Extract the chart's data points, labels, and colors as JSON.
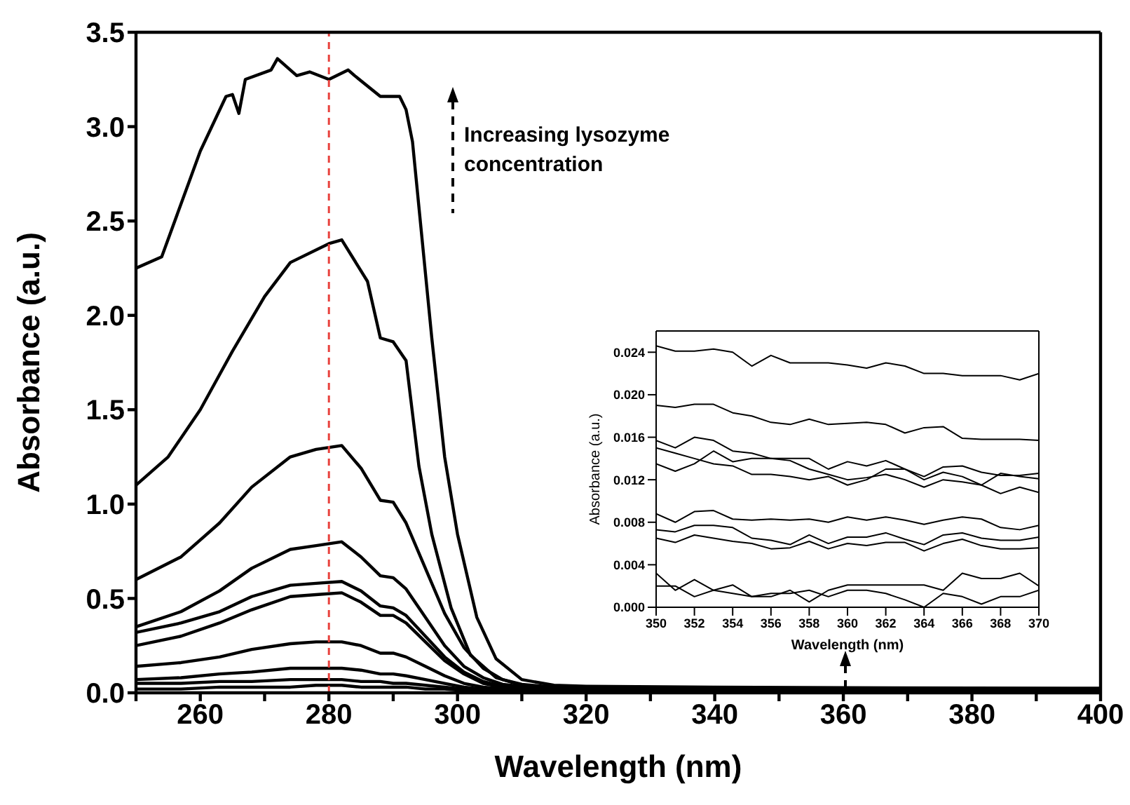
{
  "chart_data": [
    {
      "type": "line",
      "xlabel": "Wavelength (nm)",
      "ylabel": "Absorbance (a.u.)",
      "xlim": [
        250,
        400
      ],
      "ylim": [
        0,
        3.5
      ],
      "xticks": [
        {
          "value": 250,
          "label": null
        },
        260,
        {
          "value": 270,
          "label": null
        },
        280,
        {
          "value": 290,
          "label": null
        },
        300,
        {
          "value": 310,
          "label": null
        },
        320,
        {
          "value": 330,
          "label": null
        },
        340,
        {
          "value": 350,
          "label": null
        },
        360,
        {
          "value": 370,
          "label": null
        },
        380,
        {
          "value": 390,
          "label": null
        },
        400
      ],
      "yticks": [
        {
          "value": 0,
          "label": "0.0"
        },
        0.5,
        {
          "value": 1,
          "label": "1.0"
        },
        1.5,
        {
          "value": 2,
          "label": "2.0"
        },
        2.5,
        {
          "value": 3,
          "label": "3.0"
        },
        3.5
      ],
      "x": [
        250,
        257,
        263,
        268,
        274,
        278,
        282,
        285,
        288,
        290,
        292,
        295,
        298,
        301,
        304,
        307,
        310,
        315,
        320,
        340,
        360,
        380,
        400
      ],
      "series": [
        {
          "color": "#000000",
          "x": [
            250,
            254,
            260,
            264,
            265,
            266,
            267,
            271,
            272,
            275,
            277,
            280,
            283,
            284,
            288,
            291,
            292,
            293,
            296,
            298,
            300,
            303,
            306,
            310,
            315,
            320,
            340,
            360,
            380,
            400
          ],
          "values": [
            2.25,
            2.31,
            2.87,
            3.16,
            3.17,
            3.07,
            3.25,
            3.3,
            3.36,
            3.27,
            3.29,
            3.25,
            3.3,
            3.27,
            3.16,
            3.16,
            3.09,
            2.92,
            1.88,
            1.25,
            0.84,
            0.4,
            0.18,
            0.07,
            0.04,
            0.035,
            0.03,
            0.027,
            0.025,
            0.024
          ]
        },
        {
          "color": "#000000",
          "x": [
            250,
            255,
            260,
            265,
            270,
            274,
            280,
            282,
            286,
            288,
            290,
            292,
            294,
            296,
            299,
            302,
            306,
            310,
            315,
            320,
            340,
            360,
            380,
            400
          ],
          "values": [
            1.1,
            1.25,
            1.5,
            1.81,
            2.1,
            2.28,
            2.38,
            2.4,
            2.18,
            1.88,
            1.86,
            1.76,
            1.2,
            0.84,
            0.45,
            0.2,
            0.08,
            0.04,
            0.03,
            0.025,
            0.022,
            0.021,
            0.021,
            0.02
          ]
        },
        {
          "color": "#000000",
          "values": [
            0.6,
            0.72,
            0.9,
            1.09,
            1.25,
            1.29,
            1.31,
            1.19,
            1.02,
            1.01,
            0.9,
            0.66,
            0.42,
            0.24,
            0.13,
            0.07,
            0.045,
            0.03,
            0.022,
            0.02,
            0.02,
            0.019,
            0.018
          ]
        },
        {
          "color": "#000000",
          "values": [
            0.35,
            0.43,
            0.54,
            0.66,
            0.76,
            0.78,
            0.8,
            0.72,
            0.62,
            0.61,
            0.55,
            0.4,
            0.25,
            0.14,
            0.08,
            0.045,
            0.035,
            0.025,
            0.019,
            0.017,
            0.016,
            0.016,
            0.015
          ]
        },
        {
          "color": "#000000",
          "values": [
            0.32,
            0.37,
            0.43,
            0.51,
            0.57,
            0.58,
            0.59,
            0.54,
            0.46,
            0.45,
            0.41,
            0.3,
            0.19,
            0.11,
            0.06,
            0.035,
            0.028,
            0.02,
            0.016,
            0.014,
            0.014,
            0.013,
            0.013
          ]
        },
        {
          "color": "#000000",
          "values": [
            0.25,
            0.3,
            0.37,
            0.44,
            0.51,
            0.52,
            0.53,
            0.48,
            0.41,
            0.41,
            0.37,
            0.27,
            0.17,
            0.1,
            0.05,
            0.03,
            0.024,
            0.018,
            0.014,
            0.012,
            0.012,
            0.012,
            0.011
          ]
        },
        {
          "color": "#000000",
          "values": [
            0.14,
            0.16,
            0.19,
            0.23,
            0.26,
            0.27,
            0.27,
            0.25,
            0.21,
            0.21,
            0.19,
            0.14,
            0.09,
            0.05,
            0.03,
            0.022,
            0.018,
            0.014,
            0.011,
            0.009,
            0.009,
            0.008,
            0.008
          ]
        },
        {
          "color": "#000000",
          "values": [
            0.07,
            0.08,
            0.1,
            0.11,
            0.13,
            0.13,
            0.13,
            0.12,
            0.1,
            0.1,
            0.09,
            0.07,
            0.05,
            0.03,
            0.02,
            0.016,
            0.013,
            0.011,
            0.009,
            0.007,
            0.007,
            0.007,
            0.006
          ]
        },
        {
          "color": "#000000",
          "values": [
            0.05,
            0.05,
            0.06,
            0.06,
            0.07,
            0.07,
            0.07,
            0.06,
            0.06,
            0.05,
            0.05,
            0.04,
            0.03,
            0.02,
            0.015,
            0.012,
            0.01,
            0.008,
            0.007,
            0.006,
            0.006,
            0.005,
            0.005
          ]
        },
        {
          "color": "#000000",
          "values": [
            0.02,
            0.02,
            0.03,
            0.03,
            0.03,
            0.04,
            0.04,
            0.03,
            0.03,
            0.03,
            0.03,
            0.02,
            0.02,
            0.012,
            0.01,
            0.008,
            0.007,
            0.005,
            0.004,
            0.002,
            0.002,
            0.002,
            0.002
          ]
        }
      ],
      "ref_lines": [
        {
          "axis": "x",
          "value": 280,
          "color": "#e8413c",
          "line_style": "dashed"
        }
      ],
      "annotations": [
        "Increasing lysozyme concentration"
      ]
    },
    {
      "type": "line",
      "xlabel": "Wavelength (nm)",
      "ylabel": "Absorbance (a.u.)",
      "xlim": [
        350,
        370
      ],
      "ylim": [
        0,
        0.026
      ],
      "xticks": [
        350,
        352,
        354,
        356,
        358,
        360,
        362,
        364,
        366,
        368,
        370
      ],
      "yticks": [
        {
          "value": 0,
          "label": "0.000"
        },
        {
          "value": 0.004,
          "label": "0.004"
        },
        {
          "value": 0.008,
          "label": "0.008"
        },
        {
          "value": 0.012,
          "label": "0.012"
        },
        {
          "value": 0.016,
          "label": "0.016"
        },
        {
          "value": 0.02,
          "label": "0.020"
        },
        {
          "value": 0.024,
          "label": "0.024"
        }
      ],
      "x": [
        350,
        351,
        352,
        353,
        354,
        355,
        356,
        357,
        358,
        359,
        360,
        361,
        362,
        363,
        364,
        365,
        366,
        367,
        368,
        369,
        370
      ],
      "series": [
        {
          "color": "#000000",
          "values": [
            0.0246,
            0.0241,
            0.0241,
            0.0243,
            0.024,
            0.0227,
            0.0237,
            0.023,
            0.023,
            0.023,
            0.0228,
            0.0225,
            0.023,
            0.0227,
            0.022,
            0.022,
            0.0218,
            0.0218,
            0.0218,
            0.0214,
            0.022
          ]
        },
        {
          "color": "#000000",
          "values": [
            0.019,
            0.0188,
            0.0191,
            0.0191,
            0.0183,
            0.018,
            0.0174,
            0.0172,
            0.0177,
            0.0172,
            0.0173,
            0.0174,
            0.0172,
            0.0164,
            0.0169,
            0.017,
            0.0159,
            0.0158,
            0.0158,
            0.0158,
            0.0157
          ]
        },
        {
          "color": "#000000",
          "values": [
            0.0157,
            0.015,
            0.016,
            0.0157,
            0.0147,
            0.0145,
            0.014,
            0.0138,
            0.013,
            0.0125,
            0.012,
            0.0122,
            0.0125,
            0.012,
            0.0113,
            0.012,
            0.0118,
            0.0115,
            0.0126,
            0.0123,
            0.0121
          ]
        },
        {
          "color": "#000000",
          "values": [
            0.015,
            0.0145,
            0.014,
            0.0135,
            0.0133,
            0.0125,
            0.0125,
            0.0123,
            0.012,
            0.0123,
            0.0115,
            0.012,
            0.013,
            0.013,
            0.012,
            0.0127,
            0.0123,
            0.0115,
            0.0107,
            0.0113,
            0.0108
          ]
        },
        {
          "color": "#000000",
          "values": [
            0.0135,
            0.0128,
            0.0135,
            0.0147,
            0.0137,
            0.014,
            0.014,
            0.014,
            0.014,
            0.013,
            0.0137,
            0.0133,
            0.0138,
            0.013,
            0.0123,
            0.0132,
            0.0133,
            0.0127,
            0.0124,
            0.0124,
            0.0126
          ]
        },
        {
          "color": "#000000",
          "values": [
            0.0088,
            0.008,
            0.009,
            0.0091,
            0.0083,
            0.0082,
            0.0083,
            0.0082,
            0.0083,
            0.008,
            0.0085,
            0.0082,
            0.0085,
            0.0082,
            0.0078,
            0.0082,
            0.0085,
            0.0083,
            0.0075,
            0.0073,
            0.0077
          ]
        },
        {
          "color": "#000000",
          "values": [
            0.0073,
            0.0071,
            0.0077,
            0.0077,
            0.0075,
            0.0065,
            0.0063,
            0.0059,
            0.0068,
            0.006,
            0.0066,
            0.0066,
            0.007,
            0.0064,
            0.0059,
            0.0068,
            0.007,
            0.0065,
            0.0063,
            0.0063,
            0.0066
          ]
        },
        {
          "color": "#000000",
          "values": [
            0.0065,
            0.0061,
            0.0068,
            0.0065,
            0.0062,
            0.006,
            0.0055,
            0.0056,
            0.0062,
            0.0055,
            0.006,
            0.0058,
            0.0061,
            0.0061,
            0.0053,
            0.006,
            0.0064,
            0.0058,
            0.0055,
            0.0055,
            0.0056
          ]
        },
        {
          "color": "#000000",
          "values": [
            0.0032,
            0.0016,
            0.0026,
            0.0016,
            0.0021,
            0.001,
            0.001,
            0.0016,
            0.0005,
            0.0016,
            0.0021,
            0.0021,
            0.0021,
            0.0021,
            0.0021,
            0.0016,
            0.0032,
            0.0027,
            0.0027,
            0.0032,
            0.002
          ]
        },
        {
          "color": "#000000",
          "values": [
            0.002,
            0.002,
            0.001,
            0.0016,
            0.0013,
            0.001,
            0.0013,
            0.0013,
            0.0016,
            0.001,
            0.0016,
            0.0016,
            0.0013,
            0.0007,
            0.0,
            0.0013,
            0.001,
            0.0003,
            0.001,
            0.001,
            0.0016
          ]
        }
      ]
    }
  ]
}
